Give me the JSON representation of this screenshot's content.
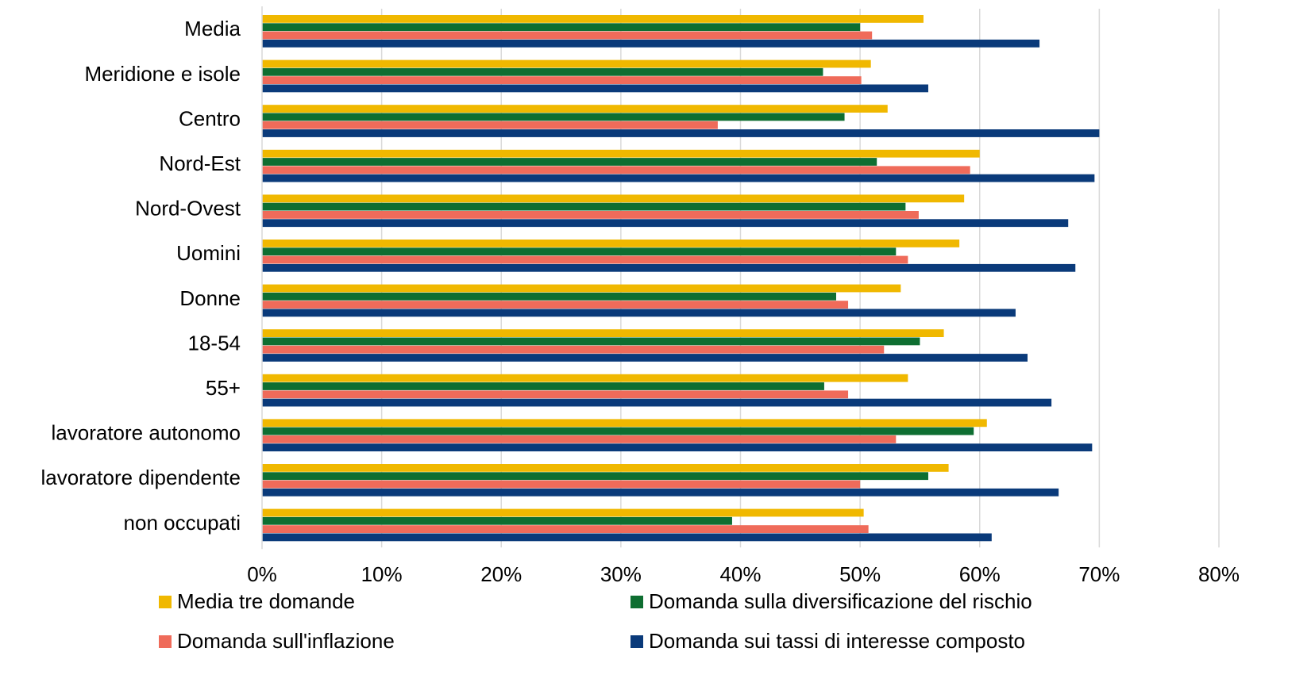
{
  "chart_data": {
    "type": "bar",
    "orientation": "horizontal",
    "title": "",
    "xlabel": "",
    "ylabel": "",
    "xlim": [
      0,
      80
    ],
    "x_tick_values": [
      0,
      10,
      20,
      30,
      40,
      50,
      60,
      70,
      80
    ],
    "x_tick_labels": [
      "0%",
      "10%",
      "20%",
      "30%",
      "40%",
      "50%",
      "60%",
      "70%",
      "80%"
    ],
    "grid": "vertical",
    "legend_position": "bottom",
    "categories": [
      "Media",
      "Meridione e isole",
      "Centro",
      "Nord-Est",
      "Nord-Ovest",
      "Uomini",
      "Donne",
      "18-54",
      "55+",
      "lavoratore autonomo",
      "lavoratore dipendente",
      "non occupati"
    ],
    "series": [
      {
        "name": "Media tre domande",
        "color": "#f0b800",
        "values": [
          55.3,
          50.9,
          52.3,
          60.0,
          58.7,
          58.3,
          53.4,
          57.0,
          54.0,
          60.6,
          57.4,
          50.3
        ]
      },
      {
        "name": "Domanda sulla diversificazione del rischio",
        "color": "#0e6e31",
        "values": [
          50.0,
          46.9,
          48.7,
          51.4,
          53.8,
          53.0,
          48.0,
          55.0,
          47.0,
          59.5,
          55.7,
          39.3
        ]
      },
      {
        "name": "Domanda sull'inflazione",
        "color": "#ef6b5a",
        "values": [
          51.0,
          50.1,
          38.1,
          59.2,
          54.9,
          54.0,
          49.0,
          52.0,
          49.0,
          53.0,
          50.0,
          50.7
        ]
      },
      {
        "name": "Domanda sui tassi di interesse composto",
        "color": "#0a3a7a",
        "values": [
          65.0,
          55.7,
          70.0,
          69.6,
          67.4,
          68.0,
          63.0,
          64.0,
          66.0,
          69.4,
          66.6,
          61.0
        ]
      }
    ]
  }
}
